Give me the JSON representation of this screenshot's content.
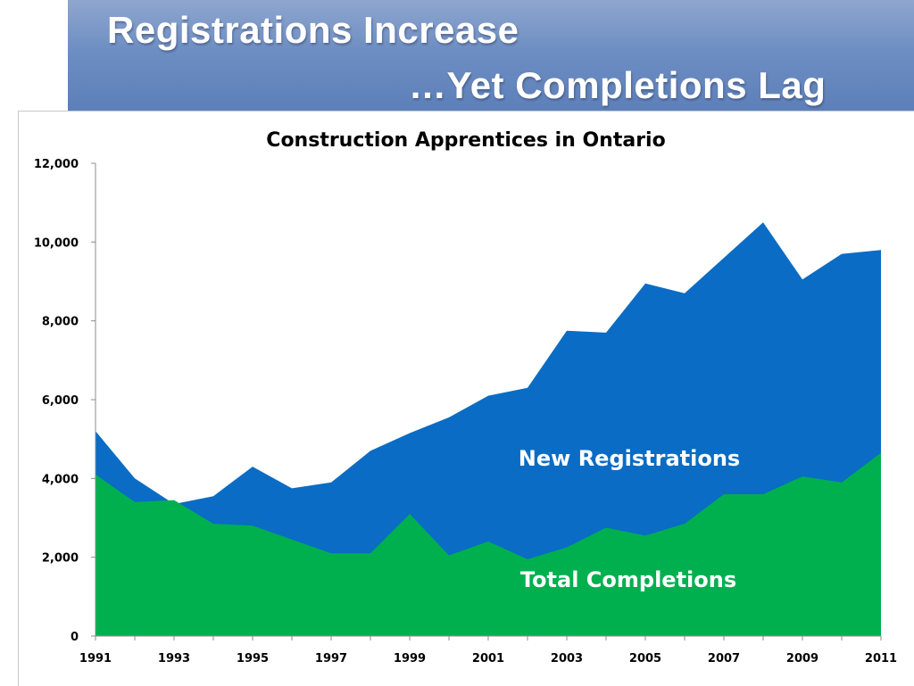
{
  "slide": {
    "title_line1": "Registrations Increase",
    "title_line2": "…Yet Completions Lag"
  },
  "colors": {
    "banner": "#6d8ec2",
    "registrations": "#0a6cc4",
    "completions": "#00b04f",
    "series_label": "#ffffff"
  },
  "chart_data": {
    "type": "area",
    "title": "Construction Apprentices in Ontario",
    "xlabel": "",
    "ylabel": "",
    "ylim": [
      0,
      12000
    ],
    "yticks": [
      "0",
      "2,000",
      "4,000",
      "6,000",
      "8,000",
      "10,000",
      "12,000"
    ],
    "xticks": [
      "1991",
      "1993",
      "1995",
      "1997",
      "1999",
      "2001",
      "2003",
      "2005",
      "2007",
      "2009",
      "2011"
    ],
    "x": [
      1991,
      1992,
      1993,
      1994,
      1995,
      1996,
      1997,
      1998,
      1999,
      2000,
      2001,
      2002,
      2003,
      2004,
      2005,
      2006,
      2007,
      2008,
      2009,
      2010,
      2011
    ],
    "series": [
      {
        "name": "New Registrations",
        "values": [
          5200,
          4000,
          3350,
          3550,
          4300,
          3750,
          3900,
          4700,
          5150,
          5550,
          6100,
          6300,
          7750,
          7700,
          8950,
          8700,
          9600,
          10500,
          9050,
          9700,
          9800
        ]
      },
      {
        "name": "Total Completions",
        "values": [
          4100,
          3400,
          3450,
          2850,
          2800,
          2450,
          2100,
          2100,
          3100,
          2050,
          2400,
          1950,
          2250,
          2750,
          2550,
          2850,
          3600,
          3600,
          4050,
          3900,
          4650
        ]
      }
    ],
    "grid": false,
    "legend": "inline labels"
  }
}
